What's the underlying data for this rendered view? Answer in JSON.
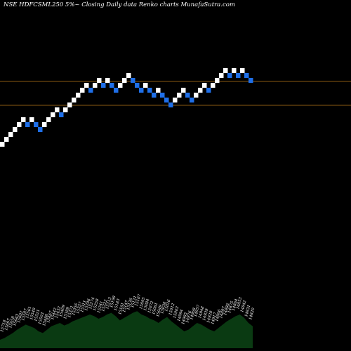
{
  "chart_data": {
    "type": "renko",
    "title": "NSE HDFCSML250  5%~  Closing Daily data  Renko  charts MunafaSutra.com",
    "colors": {
      "background": "#000000",
      "up_brick": "#ffffff",
      "down_brick": "#1f6fe8",
      "reference_line": "#8a5a12",
      "volume_area": "#0a3a12",
      "text": "#ffffff"
    },
    "reference_lines": [
      16150,
      15900
    ],
    "bricks": [
      {
        "level": 1,
        "dir": "up"
      },
      {
        "level": 2,
        "dir": "up"
      },
      {
        "level": 3,
        "dir": "up"
      },
      {
        "level": 4,
        "dir": "up"
      },
      {
        "level": 5,
        "dir": "up"
      },
      {
        "level": 6,
        "dir": "up"
      },
      {
        "level": 5,
        "dir": "down"
      },
      {
        "level": 6,
        "dir": "up"
      },
      {
        "level": 5,
        "dir": "down"
      },
      {
        "level": 4,
        "dir": "down"
      },
      {
        "level": 5,
        "dir": "up"
      },
      {
        "level": 6,
        "dir": "up"
      },
      {
        "level": 7,
        "dir": "up"
      },
      {
        "level": 8,
        "dir": "up"
      },
      {
        "level": 7,
        "dir": "down"
      },
      {
        "level": 8,
        "dir": "up"
      },
      {
        "level": 9,
        "dir": "up"
      },
      {
        "level": 10,
        "dir": "up"
      },
      {
        "level": 11,
        "dir": "up"
      },
      {
        "level": 12,
        "dir": "up"
      },
      {
        "level": 13,
        "dir": "up"
      },
      {
        "level": 12,
        "dir": "down"
      },
      {
        "level": 13,
        "dir": "up"
      },
      {
        "level": 14,
        "dir": "up"
      },
      {
        "level": 13,
        "dir": "down"
      },
      {
        "level": 14,
        "dir": "up"
      },
      {
        "level": 13,
        "dir": "down"
      },
      {
        "level": 12,
        "dir": "down"
      },
      {
        "level": 13,
        "dir": "up"
      },
      {
        "level": 14,
        "dir": "up"
      },
      {
        "level": 15,
        "dir": "up"
      },
      {
        "level": 14,
        "dir": "down"
      },
      {
        "level": 13,
        "dir": "down"
      },
      {
        "level": 12,
        "dir": "down"
      },
      {
        "level": 13,
        "dir": "up"
      },
      {
        "level": 12,
        "dir": "down"
      },
      {
        "level": 11,
        "dir": "down"
      },
      {
        "level": 12,
        "dir": "up"
      },
      {
        "level": 11,
        "dir": "down"
      },
      {
        "level": 10,
        "dir": "down"
      },
      {
        "level": 9,
        "dir": "down"
      },
      {
        "level": 10,
        "dir": "up"
      },
      {
        "level": 11,
        "dir": "up"
      },
      {
        "level": 12,
        "dir": "up"
      },
      {
        "level": 11,
        "dir": "down"
      },
      {
        "level": 10,
        "dir": "down"
      },
      {
        "level": 11,
        "dir": "up"
      },
      {
        "level": 12,
        "dir": "up"
      },
      {
        "level": 13,
        "dir": "up"
      },
      {
        "level": 12,
        "dir": "down"
      },
      {
        "level": 13,
        "dir": "up"
      },
      {
        "level": 14,
        "dir": "up"
      },
      {
        "level": 15,
        "dir": "up"
      },
      {
        "level": 16,
        "dir": "up"
      },
      {
        "level": 15,
        "dir": "down"
      },
      {
        "level": 16,
        "dir": "up"
      },
      {
        "level": 15,
        "dir": "down"
      },
      {
        "level": 16,
        "dir": "up"
      },
      {
        "level": 15,
        "dir": "down"
      },
      {
        "level": 14,
        "dir": "down"
      }
    ],
    "volume": {
      "values": [
        10,
        12,
        15,
        18,
        22,
        25,
        28,
        26,
        24,
        20,
        18,
        22,
        26,
        28,
        30,
        27,
        29,
        32,
        34,
        36,
        38,
        40,
        38,
        35,
        37,
        40,
        42,
        38,
        33,
        36,
        39,
        42,
        44,
        40,
        38,
        35,
        33,
        30,
        34,
        37,
        32,
        28,
        24,
        20,
        22,
        26,
        30,
        28,
        25,
        22,
        20,
        24,
        28,
        32,
        35,
        38,
        40,
        36,
        30,
        26
      ],
      "labels": [
        "15718",
        "15697",
        "15658",
        "15643",
        "15602",
        "15587",
        "15561",
        "15549",
        "15521",
        "15503",
        "15488",
        "15467",
        "15442",
        "15432",
        "15409",
        "15389",
        "15371",
        "15356",
        "15337",
        "15311",
        "15296",
        "15274",
        "15258",
        "15241",
        "15222",
        "15213",
        "15198",
        "15183",
        "15161",
        "15147",
        "15136",
        "15121",
        "15107",
        "15095",
        "15084",
        "15072",
        "15061",
        "15049",
        "15038",
        "15026",
        "15012",
        "15003",
        "14994",
        "14985",
        "14976",
        "14968",
        "14957",
        "14948",
        "14939",
        "14928",
        "14917",
        "14906",
        "14897",
        "14886",
        "14875",
        "14864",
        "14853",
        "14842",
        "14831",
        "14820"
      ]
    }
  }
}
